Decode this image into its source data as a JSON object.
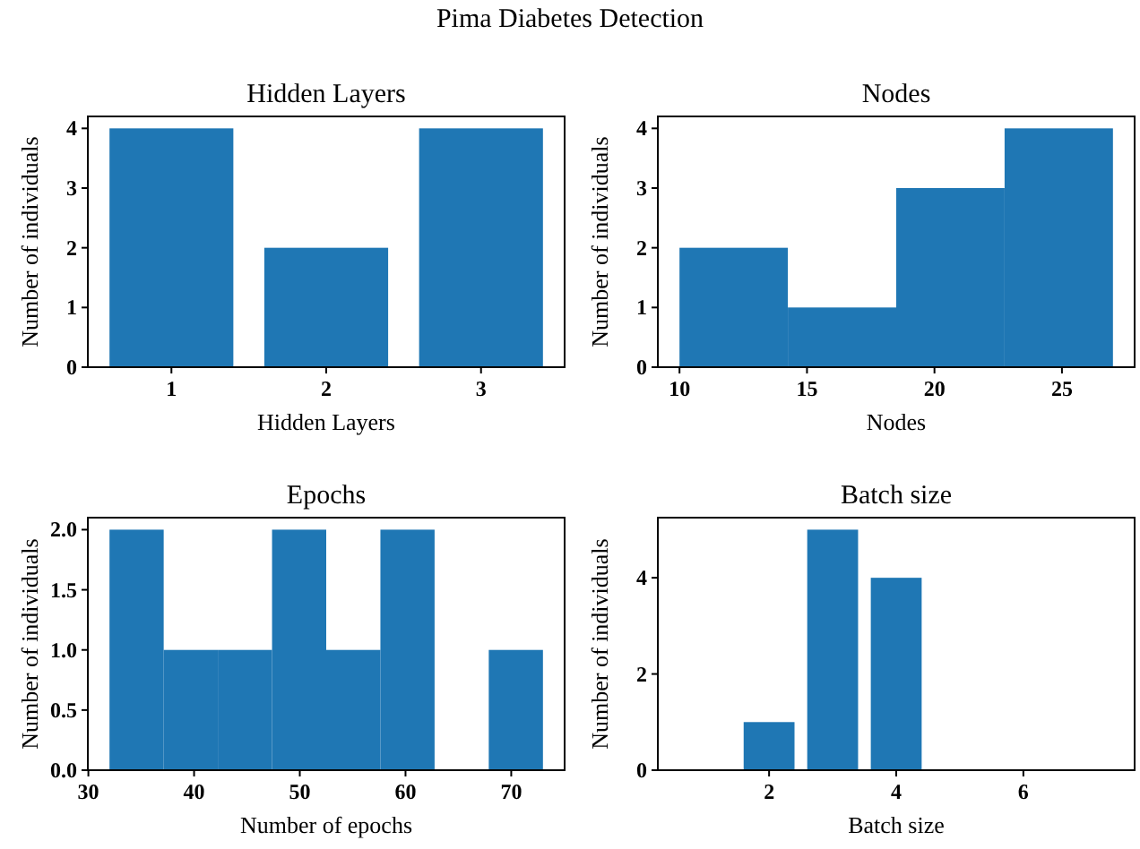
{
  "chart_data": [
    {
      "type": "bar",
      "title": "Hidden Layers",
      "xlabel": "Hidden Layers",
      "ylabel": "Number of individuals",
      "annotations": [
        "Pima Diabetes Detection"
      ],
      "x": [
        1,
        2,
        3
      ],
      "values": [
        4,
        2,
        4
      ],
      "color": "#1f77b4",
      "xlim": [
        0.46,
        3.54
      ],
      "xticks": [
        1,
        2,
        3
      ],
      "ylim": [
        0,
        4.2
      ],
      "yticks": [
        0,
        1,
        2,
        3,
        4
      ]
    },
    {
      "type": "histogram",
      "title": "Nodes",
      "xlabel": "Nodes",
      "ylabel": "Number of individuals",
      "bins": [
        10,
        14.25,
        18.5,
        22.75,
        27
      ],
      "values": [
        2,
        1,
        3,
        4
      ],
      "color": "#1f77b4",
      "xlim": [
        9.15,
        27.85
      ],
      "xticks": [
        10,
        15,
        20,
        25
      ],
      "ylim": [
        0,
        4.2
      ],
      "yticks": [
        0,
        1,
        2,
        3,
        4
      ]
    },
    {
      "type": "histogram",
      "title": "Epochs",
      "xlabel": "Number of epochs",
      "ylabel": "Number of individuals",
      "bins": [
        32,
        37.125,
        42.25,
        47.375,
        52.5,
        57.625,
        62.75,
        67.875,
        73
      ],
      "values": [
        2,
        1,
        1,
        2,
        1,
        2,
        0,
        1
      ],
      "color": "#1f77b4",
      "xlim": [
        29.95,
        75.05
      ],
      "xticks": [
        30,
        40,
        50,
        60,
        70
      ],
      "ylim": [
        0,
        2.1
      ],
      "yticks": [
        {
          "value": 0,
          "label": "0.0"
        },
        {
          "value": 0.5,
          "label": "0.5"
        },
        {
          "value": 1,
          "label": "1.0"
        },
        {
          "value": 1.5,
          "label": "1.5"
        },
        {
          "value": 2,
          "label": "2.0"
        }
      ]
    },
    {
      "type": "bar",
      "title": "Batch size",
      "xlabel": "Batch size",
      "ylabel": "Number of individuals",
      "x": [
        2,
        3,
        4
      ],
      "values": [
        1,
        5,
        4
      ],
      "color": "#1f77b4",
      "xlim": [
        0.25,
        7.75
      ],
      "xticks": [
        2,
        4,
        6
      ],
      "ylim": [
        0,
        5.25
      ],
      "yticks": [
        0,
        2,
        4
      ]
    }
  ]
}
